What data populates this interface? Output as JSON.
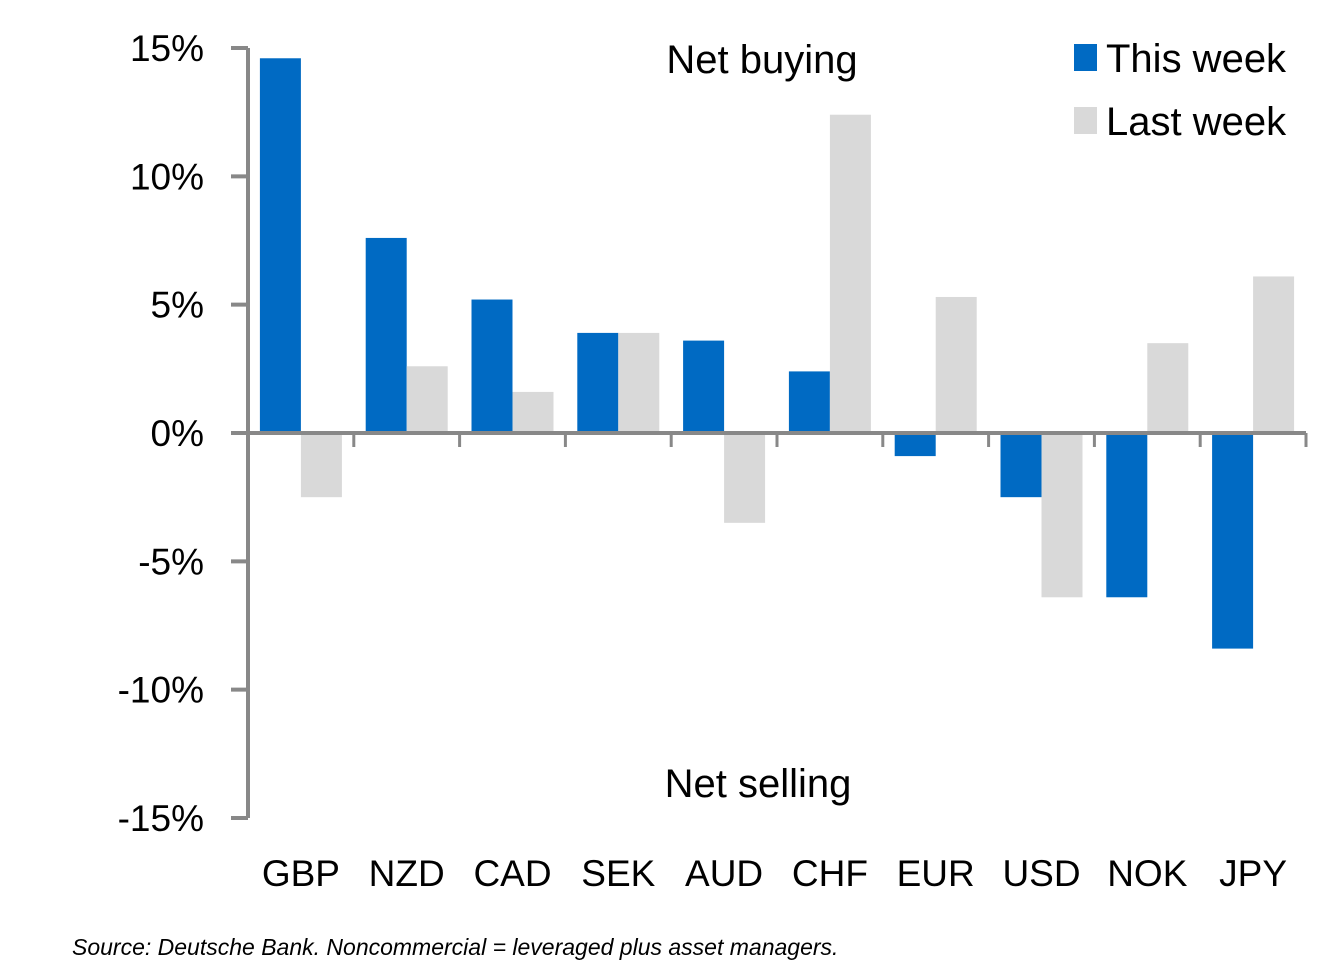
{
  "chart_data": {
    "type": "bar",
    "title": "",
    "xlabel": "",
    "ylabel": "",
    "categories": [
      "GBP",
      "NZD",
      "CAD",
      "SEK",
      "AUD",
      "CHF",
      "EUR",
      "USD",
      "NOK",
      "JPY"
    ],
    "series": [
      {
        "name": "This week",
        "color": "#006AC3",
        "values": [
          14.6,
          7.6,
          5.2,
          3.9,
          3.6,
          2.4,
          -0.9,
          -2.5,
          -6.4,
          -8.4
        ]
      },
      {
        "name": "Last week",
        "color": "#D9D9D9",
        "values": [
          -2.5,
          2.6,
          1.6,
          3.9,
          -3.5,
          12.4,
          5.3,
          -6.4,
          3.5,
          6.1
        ]
      }
    ],
    "ylim": [
      -15,
      15
    ],
    "yticks": [
      15,
      10,
      5,
      0,
      -5,
      -10,
      -15
    ],
    "ytick_labels": [
      "15%",
      "10%",
      "5%",
      "0%",
      "-5%",
      "-10%",
      "-15%"
    ],
    "grid": false,
    "legend_position": "top-right",
    "annotations": {
      "top": "Net buying",
      "bottom": "Net selling"
    },
    "axis_color": "#888888"
  },
  "source_note": "Source: Deutsche Bank. Noncommercial = leveraged plus asset managers."
}
